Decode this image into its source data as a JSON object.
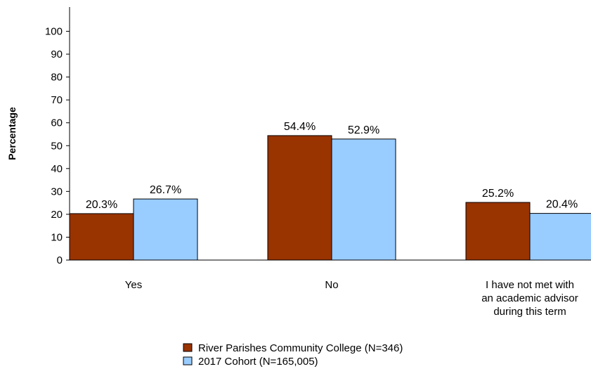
{
  "chart_data": {
    "type": "bar",
    "title": "",
    "xlabel": "",
    "ylabel": "Percentage",
    "ylim": [
      0,
      100
    ],
    "yticks": [
      0,
      10,
      20,
      30,
      40,
      50,
      60,
      70,
      80,
      90,
      100
    ],
    "grid": false,
    "legend_position": "bottom",
    "categories": [
      [
        "Yes"
      ],
      [
        "No"
      ],
      [
        "I have not met with",
        "an academic advisor",
        "during this term"
      ]
    ],
    "series": [
      {
        "name": "River Parishes Community College (N=346)",
        "color": "#993300",
        "values": [
          20.3,
          54.4,
          25.2
        ],
        "labels": [
          "20.3%",
          "54.4%",
          "25.2%"
        ]
      },
      {
        "name": "2017 Cohort (N=165,005)",
        "color": "#99CCFF",
        "values": [
          26.7,
          52.9,
          20.4
        ],
        "labels": [
          "26.7%",
          "52.9%",
          "20.4%"
        ]
      }
    ]
  }
}
